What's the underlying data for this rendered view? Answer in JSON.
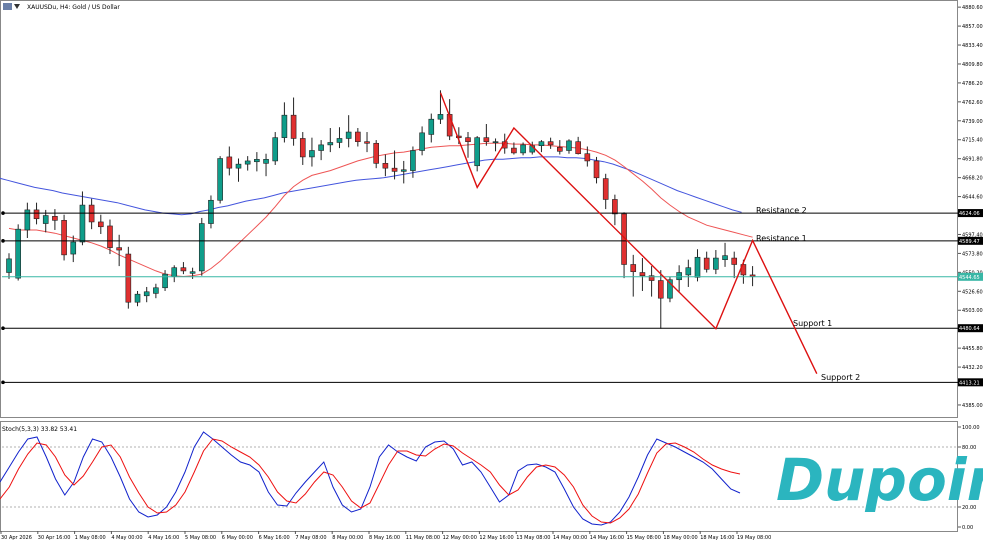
{
  "header": {
    "symbol": "XAUUSDu",
    "timeframe": "H4",
    "description": "Gold / US Dollar",
    "text": "XAUUSDu, H4:  Gold / US Dollar"
  },
  "indicator_label": "Stoch(5,3,3) 33.82 53.41",
  "colors": {
    "bull": "#0f9d8a",
    "bear": "#e03030",
    "ma_fast": "#ee5555",
    "ma_slow": "#4455dd",
    "zigzag": "#dd1111",
    "level": "#000000",
    "current": "#39b7a6",
    "stoch_k": "#1122cc",
    "stoch_d": "#ee1111",
    "logo": "#2bb5bf"
  },
  "chart_data": [
    {
      "type": "candlestick",
      "title": "XAUUSDu, H4: Gold / US Dollar",
      "y_ticks": [
        4880.6,
        4857.0,
        4833.4,
        4809.8,
        4786.2,
        4762.6,
        4739.0,
        4715.4,
        4691.8,
        4668.2,
        4644.6,
        4597.4,
        4573.8,
        4550.2,
        4526.6,
        4503.0,
        4455.8,
        4432.2,
        4385.0
      ],
      "ylim": [
        4370.0,
        4887.0
      ],
      "x_ticks": [
        "30 Apr 2026",
        "30 Apr 16:00",
        "1 May 08:00",
        "4 May 00:00",
        "4 May 16:00",
        "5 May 08:00",
        "6 May 00:00",
        "6 May 16:00",
        "7 May 08:00",
        "8 May 00:00",
        "8 May 16:00",
        "11 May 08:00",
        "12 May 00:00",
        "12 May 16:00",
        "13 May 08:00",
        "14 May 00:00",
        "14 May 16:00",
        "15 May 08:00",
        "18 May 00:00",
        "18 May 16:00",
        "19 May 08:00"
      ],
      "price_tags": [
        {
          "label": "4624.06",
          "value": 4624.06
        },
        {
          "label": "4589.47",
          "value": 4589.47
        },
        {
          "label": "4544.65",
          "value": 4544.65
        },
        {
          "label": "4480.64",
          "value": 4480.64
        },
        {
          "label": "4413.21",
          "value": 4413.21
        }
      ],
      "levels": [
        {
          "name": "Resistance 2",
          "value": 4624.06
        },
        {
          "name": "Resistance 1",
          "value": 4589.47
        },
        {
          "name": "Support 1",
          "value": 4480.64
        },
        {
          "name": "Support 2",
          "value": 4413.21
        }
      ],
      "current_price": 4544.65,
      "candles": [
        {
          "o": 4550,
          "h": 4574,
          "l": 4542,
          "c": 4567
        },
        {
          "o": 4543,
          "h": 4610,
          "l": 4540,
          "c": 4604
        },
        {
          "o": 4603,
          "h": 4637,
          "l": 4593,
          "c": 4628
        },
        {
          "o": 4628,
          "h": 4637,
          "l": 4610,
          "c": 4617
        },
        {
          "o": 4611,
          "h": 4628,
          "l": 4600,
          "c": 4621
        },
        {
          "o": 4620,
          "h": 4629,
          "l": 4603,
          "c": 4615
        },
        {
          "o": 4615,
          "h": 4622,
          "l": 4565,
          "c": 4572
        },
        {
          "o": 4573,
          "h": 4596,
          "l": 4563,
          "c": 4588
        },
        {
          "o": 4588,
          "h": 4651,
          "l": 4584,
          "c": 4634
        },
        {
          "o": 4634,
          "h": 4642,
          "l": 4604,
          "c": 4613
        },
        {
          "o": 4613,
          "h": 4622,
          "l": 4598,
          "c": 4607
        },
        {
          "o": 4608,
          "h": 4616,
          "l": 4573,
          "c": 4581
        },
        {
          "o": 4581,
          "h": 4597,
          "l": 4558,
          "c": 4578
        },
        {
          "o": 4573,
          "h": 4582,
          "l": 4505,
          "c": 4513
        },
        {
          "o": 4513,
          "h": 4527,
          "l": 4508,
          "c": 4523
        },
        {
          "o": 4521,
          "h": 4532,
          "l": 4513,
          "c": 4526
        },
        {
          "o": 4524,
          "h": 4536,
          "l": 4518,
          "c": 4531
        },
        {
          "o": 4531,
          "h": 4553,
          "l": 4527,
          "c": 4548
        },
        {
          "o": 4545,
          "h": 4559,
          "l": 4538,
          "c": 4556
        },
        {
          "o": 4556,
          "h": 4563,
          "l": 4548,
          "c": 4552
        },
        {
          "o": 4549,
          "h": 4556,
          "l": 4542,
          "c": 4551
        },
        {
          "o": 4552,
          "h": 4618,
          "l": 4546,
          "c": 4611
        },
        {
          "o": 4611,
          "h": 4646,
          "l": 4605,
          "c": 4640
        },
        {
          "o": 4640,
          "h": 4695,
          "l": 4636,
          "c": 4692
        },
        {
          "o": 4694,
          "h": 4707,
          "l": 4671,
          "c": 4680
        },
        {
          "o": 4680,
          "h": 4692,
          "l": 4663,
          "c": 4685
        },
        {
          "o": 4685,
          "h": 4695,
          "l": 4677,
          "c": 4689
        },
        {
          "o": 4688,
          "h": 4700,
          "l": 4676,
          "c": 4691
        },
        {
          "o": 4686,
          "h": 4698,
          "l": 4670,
          "c": 4691
        },
        {
          "o": 4689,
          "h": 4725,
          "l": 4684,
          "c": 4718
        },
        {
          "o": 4718,
          "h": 4762,
          "l": 4712,
          "c": 4746
        },
        {
          "o": 4746,
          "h": 4768,
          "l": 4708,
          "c": 4717
        },
        {
          "o": 4717,
          "h": 4725,
          "l": 4684,
          "c": 4694
        },
        {
          "o": 4694,
          "h": 4718,
          "l": 4682,
          "c": 4702
        },
        {
          "o": 4702,
          "h": 4715,
          "l": 4690,
          "c": 4709
        },
        {
          "o": 4709,
          "h": 4730,
          "l": 4700,
          "c": 4712
        },
        {
          "o": 4712,
          "h": 4731,
          "l": 4705,
          "c": 4717
        },
        {
          "o": 4717,
          "h": 4746,
          "l": 4706,
          "c": 4725
        },
        {
          "o": 4725,
          "h": 4730,
          "l": 4707,
          "c": 4713
        },
        {
          "o": 4713,
          "h": 4725,
          "l": 4700,
          "c": 4711
        },
        {
          "o": 4711,
          "h": 4715,
          "l": 4680,
          "c": 4686
        },
        {
          "o": 4686,
          "h": 4697,
          "l": 4670,
          "c": 4680
        },
        {
          "o": 4680,
          "h": 4702,
          "l": 4666,
          "c": 4676
        },
        {
          "o": 4676,
          "h": 4689,
          "l": 4661,
          "c": 4678
        },
        {
          "o": 4677,
          "h": 4707,
          "l": 4668,
          "c": 4702
        },
        {
          "o": 4702,
          "h": 4732,
          "l": 4696,
          "c": 4724
        },
        {
          "o": 4722,
          "h": 4748,
          "l": 4712,
          "c": 4741
        },
        {
          "o": 4741,
          "h": 4777,
          "l": 4735,
          "c": 4747
        },
        {
          "o": 4747,
          "h": 4766,
          "l": 4715,
          "c": 4720
        },
        {
          "o": 4720,
          "h": 4731,
          "l": 4710,
          "c": 4718
        },
        {
          "o": 4718,
          "h": 4725,
          "l": 4693,
          "c": 4713
        },
        {
          "o": 4683,
          "h": 4720,
          "l": 4676,
          "c": 4718
        },
        {
          "o": 4718,
          "h": 4735,
          "l": 4708,
          "c": 4713
        },
        {
          "o": 4713,
          "h": 4717,
          "l": 4701,
          "c": 4713
        },
        {
          "o": 4713,
          "h": 4723,
          "l": 4698,
          "c": 4705
        },
        {
          "o": 4705,
          "h": 4712,
          "l": 4697,
          "c": 4699
        },
        {
          "o": 4699,
          "h": 4712,
          "l": 4696,
          "c": 4709
        },
        {
          "o": 4700,
          "h": 4713,
          "l": 4697,
          "c": 4708
        },
        {
          "o": 4708,
          "h": 4715,
          "l": 4700,
          "c": 4713
        },
        {
          "o": 4713,
          "h": 4718,
          "l": 4704,
          "c": 4709
        },
        {
          "o": 4706,
          "h": 4715,
          "l": 4697,
          "c": 4701
        },
        {
          "o": 4702,
          "h": 4716,
          "l": 4698,
          "c": 4714
        },
        {
          "o": 4713,
          "h": 4719,
          "l": 4697,
          "c": 4698
        },
        {
          "o": 4698,
          "h": 4707,
          "l": 4682,
          "c": 4689
        },
        {
          "o": 4689,
          "h": 4694,
          "l": 4661,
          "c": 4668
        },
        {
          "o": 4667,
          "h": 4673,
          "l": 4629,
          "c": 4641
        },
        {
          "o": 4641,
          "h": 4647,
          "l": 4609,
          "c": 4623
        },
        {
          "o": 4623,
          "h": 4625,
          "l": 4543,
          "c": 4560
        },
        {
          "o": 4560,
          "h": 4572,
          "l": 4520,
          "c": 4551
        },
        {
          "o": 4550,
          "h": 4568,
          "l": 4527,
          "c": 4546
        },
        {
          "o": 4546,
          "h": 4558,
          "l": 4520,
          "c": 4540
        },
        {
          "o": 4540,
          "h": 4553,
          "l": 4480,
          "c": 4518
        },
        {
          "o": 4518,
          "h": 4545,
          "l": 4513,
          "c": 4541
        },
        {
          "o": 4541,
          "h": 4559,
          "l": 4526,
          "c": 4550
        },
        {
          "o": 4547,
          "h": 4566,
          "l": 4532,
          "c": 4556
        },
        {
          "o": 4544,
          "h": 4579,
          "l": 4539,
          "c": 4569
        },
        {
          "o": 4568,
          "h": 4576,
          "l": 4550,
          "c": 4554
        },
        {
          "o": 4554,
          "h": 4578,
          "l": 4548,
          "c": 4568
        },
        {
          "o": 4566,
          "h": 4587,
          "l": 4557,
          "c": 4571
        },
        {
          "o": 4568,
          "h": 4576,
          "l": 4543,
          "c": 4560
        },
        {
          "o": 4560,
          "h": 4566,
          "l": 4536,
          "c": 4547
        },
        {
          "o": 4547,
          "h": 4558,
          "l": 4533,
          "c": 4545
        }
      ],
      "ma_fast": [
        4605,
        4603,
        4603,
        4603,
        4601,
        4599,
        4596,
        4593,
        4590,
        4587,
        4583,
        4578,
        4572,
        4567,
        4562,
        4557,
        4552,
        4548,
        4546,
        4545,
        4546,
        4548,
        4555,
        4564,
        4575,
        4586,
        4597,
        4608,
        4619,
        4632,
        4646,
        4657,
        4665,
        4671,
        4674,
        4677,
        4681,
        4685,
        4689,
        4692,
        4695,
        4697,
        4699,
        4700,
        4702,
        4704,
        4706,
        4707,
        4708,
        4708,
        4709,
        4710,
        4711,
        4711,
        4711,
        4710,
        4710,
        4709,
        4709,
        4708,
        4707,
        4706,
        4705,
        4703,
        4700,
        4696,
        4690,
        4682,
        4673,
        4664,
        4654,
        4643,
        4634,
        4626,
        4619,
        4614,
        4609,
        4606,
        4603,
        4600,
        4597,
        4594
      ],
      "ma_slow": [
        4668,
        4665,
        4662,
        4659,
        4656,
        4654,
        4652,
        4649,
        4647,
        4645,
        4643,
        4641,
        4639,
        4637,
        4634,
        4631,
        4628,
        4626,
        4624,
        4623,
        4622,
        4623,
        4626,
        4628,
        4631,
        4633,
        4636,
        4639,
        4641,
        4643,
        4646,
        4649,
        4651,
        4653,
        4655,
        4657,
        4659,
        4661,
        4663,
        4665,
        4666,
        4667,
        4668,
        4670,
        4672,
        4674,
        4676,
        4678,
        4680,
        4682,
        4684,
        4686,
        4688,
        4690,
        4691,
        4691,
        4692,
        4693,
        4693,
        4694,
        4694,
        4694,
        4693,
        4693,
        4692,
        4690,
        4688,
        4685,
        4681,
        4677,
        4672,
        4667,
        4662,
        4657,
        4652,
        4648,
        4644,
        4640,
        4636,
        4632,
        4628,
        4625
      ],
      "zigzag": [
        [
          47,
          4774
        ],
        [
          51,
          4656
        ],
        [
          55,
          4730
        ],
        [
          77,
          4480
        ],
        [
          81,
          4590
        ],
        [
          88,
          4424
        ]
      ]
    },
    {
      "type": "line",
      "title": "Stoch(5,3,3) 33.82 53.41",
      "ylim": [
        0,
        100
      ],
      "y_ticks": [
        100.0,
        80.0,
        20.0,
        0.0
      ],
      "series": [
        {
          "name": "%K",
          "values": [
            45,
            60,
            75,
            88,
            90,
            70,
            48,
            32,
            45,
            70,
            88,
            85,
            70,
            50,
            28,
            15,
            10,
            12,
            20,
            35,
            55,
            80,
            95,
            88,
            80,
            72,
            65,
            62,
            55,
            35,
            22,
            21,
            34,
            45,
            55,
            65,
            40,
            22,
            15,
            18,
            40,
            70,
            82,
            75,
            70,
            66,
            80,
            85,
            86,
            78,
            62,
            65,
            55,
            40,
            25,
            32,
            56,
            62,
            63,
            60,
            55,
            38,
            20,
            8,
            3,
            2,
            5,
            15,
            30,
            50,
            72,
            88,
            84,
            80,
            75,
            70,
            65,
            58,
            48,
            38,
            34
          ]
        },
        {
          "name": "%D",
          "values": [
            28,
            40,
            58,
            73,
            84,
            82,
            70,
            52,
            42,
            51,
            65,
            80,
            82,
            70,
            50,
            34,
            20,
            14,
            15,
            22,
            35,
            55,
            76,
            88,
            86,
            80,
            75,
            70,
            62,
            50,
            35,
            26,
            24,
            33,
            45,
            55,
            52,
            40,
            26,
            19,
            24,
            43,
            62,
            76,
            76,
            72,
            71,
            78,
            83,
            81,
            74,
            68,
            62,
            55,
            42,
            32,
            37,
            50,
            60,
            62,
            60,
            52,
            40,
            22,
            11,
            5,
            4,
            9,
            18,
            33,
            54,
            74,
            83,
            84,
            80,
            75,
            68,
            62,
            58,
            55,
            53
          ]
        }
      ]
    }
  ],
  "annotations": {
    "resistance_2": "Resistance 2",
    "resistance_1": "Resistance 1",
    "support_1": "Support 1",
    "support_2": "Support 2"
  },
  "logo": {
    "text": "Dupoin"
  }
}
